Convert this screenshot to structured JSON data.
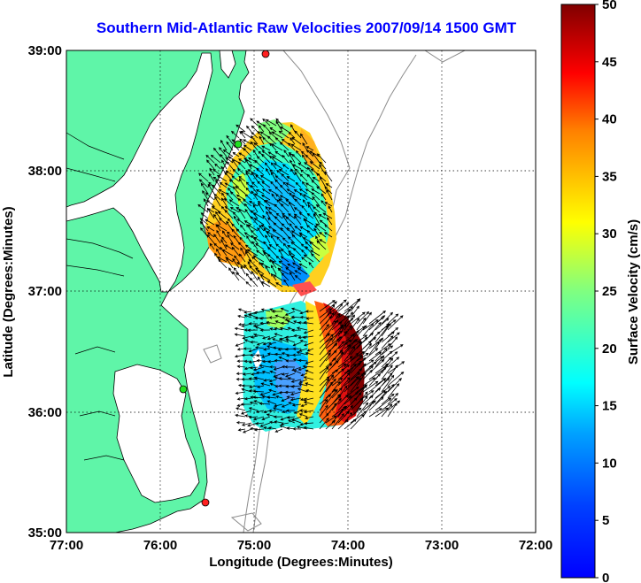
{
  "chart_data": {
    "type": "map",
    "title": "Southern Mid-Atlantic Raw Velocities 2007/09/14 1500 GMT",
    "xlabel": "Longitude (Degrees:Minutes)",
    "ylabel": "Latitude (Degrees:Minutes)",
    "x_ticks": [
      "77:00",
      "76:00",
      "75:00",
      "74:00",
      "73:00",
      "72:00"
    ],
    "y_ticks": [
      "39:00",
      "38:00",
      "37:00",
      "36:00",
      "35:00"
    ],
    "xlim": [
      -77,
      -72
    ],
    "ylim": [
      35,
      39
    ],
    "grid": true,
    "colorbar": {
      "label": "Surface Velocity (cm/s)",
      "ticks": [
        "50",
        "45",
        "40",
        "35",
        "30",
        "25",
        "20",
        "15",
        "10",
        "5",
        "0"
      ],
      "range": [
        0,
        50
      ],
      "colormap": "jet"
    },
    "colors": {
      "land": "#5ff5a8",
      "title": "#0000ff",
      "site_active": "#ff2020",
      "site_inactive": "#20e020",
      "bathymetry": "#8c8c8c"
    },
    "stations": [
      {
        "lon": -74.9,
        "lat": 38.95,
        "status": "red"
      },
      {
        "lon": -75.15,
        "lat": 38.2,
        "status": "green"
      },
      {
        "lon": -75.75,
        "lat": 36.2,
        "status": "green"
      },
      {
        "lon": -75.5,
        "lat": 35.3,
        "status": "red"
      }
    ]
  }
}
